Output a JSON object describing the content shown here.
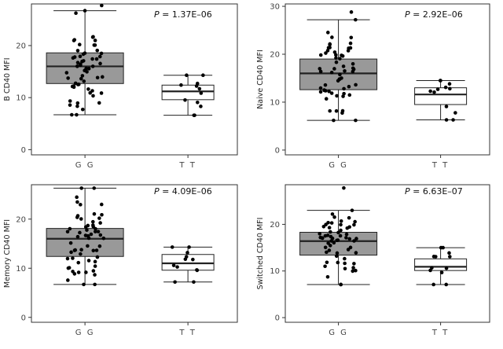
{
  "chart_data": [
    {
      "type": "box",
      "ylabel": "B CD40 MFI",
      "ylim": [
        -1,
        28
      ],
      "yticks": [
        0,
        10,
        20
      ],
      "p_prefix": "P",
      "p_value": " = 1.37E–06",
      "categories": [
        "G G",
        "T T"
      ],
      "box_colors": [
        "#999999",
        "#ffffff"
      ],
      "series": [
        {
          "name": "G G",
          "q1": 12.7,
          "median": 16.0,
          "q3": 18.6,
          "whisker_low": 6.7,
          "whisker_high": 26.7,
          "n": 60,
          "min": 6.7,
          "max": 27.7
        },
        {
          "name": "T T",
          "q1": 9.6,
          "median": 11.2,
          "q3": 12.4,
          "whisker_low": 6.6,
          "whisker_high": 14.3,
          "n": 12,
          "min": 6.6,
          "max": 14.3
        }
      ]
    },
    {
      "type": "box",
      "ylabel": "Naive CD40 MFI",
      "ylim": [
        -1,
        30.5
      ],
      "yticks": [
        0,
        10,
        20,
        30
      ],
      "p_prefix": "P",
      "p_value": " = 2.92E–06",
      "categories": [
        "G G",
        "T T"
      ],
      "box_colors": [
        "#999999",
        "#ffffff"
      ],
      "series": [
        {
          "name": "G G",
          "q1": 12.6,
          "median": 16.0,
          "q3": 19.0,
          "whisker_low": 6.2,
          "whisker_high": 27.2,
          "n": 60,
          "min": 6.2,
          "max": 28.8
        },
        {
          "name": "T T",
          "q1": 9.5,
          "median": 11.6,
          "q3": 13.0,
          "whisker_low": 6.3,
          "whisker_high": 14.5,
          "n": 12,
          "min": 6.3,
          "max": 14.5
        }
      ]
    },
    {
      "type": "box",
      "ylabel": "Memory CD40 MFI",
      "ylim": [
        -1,
        27
      ],
      "yticks": [
        0,
        10,
        20
      ],
      "p_prefix": "P",
      "p_value": " = 4.09E–06",
      "categories": [
        "G G",
        "T T"
      ],
      "box_colors": [
        "#999999",
        "#ffffff"
      ],
      "series": [
        {
          "name": "G G",
          "q1": 12.4,
          "median": 16.0,
          "q3": 18.1,
          "whisker_low": 6.7,
          "whisker_high": 26.3,
          "n": 60,
          "min": 6.7,
          "max": 26.3
        },
        {
          "name": "T T",
          "q1": 9.6,
          "median": 11.0,
          "q3": 12.8,
          "whisker_low": 7.2,
          "whisker_high": 14.3,
          "n": 12,
          "min": 7.2,
          "max": 14.3
        }
      ]
    },
    {
      "type": "box",
      "ylabel": "Switched CD40 MFI",
      "ylim": [
        -1,
        28.5
      ],
      "yticks": [
        0,
        10,
        20
      ],
      "p_prefix": "P",
      "p_value": " = 6.63E–07",
      "categories": [
        "G G",
        "T T"
      ],
      "box_colors": [
        "#999999",
        "#ffffff"
      ],
      "series": [
        {
          "name": "G G",
          "q1": 13.4,
          "median": 16.4,
          "q3": 18.3,
          "whisker_low": 7.1,
          "whisker_high": 23.0,
          "n": 60,
          "min": 7.1,
          "max": 27.8
        },
        {
          "name": "T T",
          "q1": 10.1,
          "median": 10.9,
          "q3": 12.6,
          "whisker_low": 7.1,
          "whisker_high": 15.0,
          "n": 12,
          "min": 7.1,
          "max": 15.0
        }
      ]
    }
  ]
}
